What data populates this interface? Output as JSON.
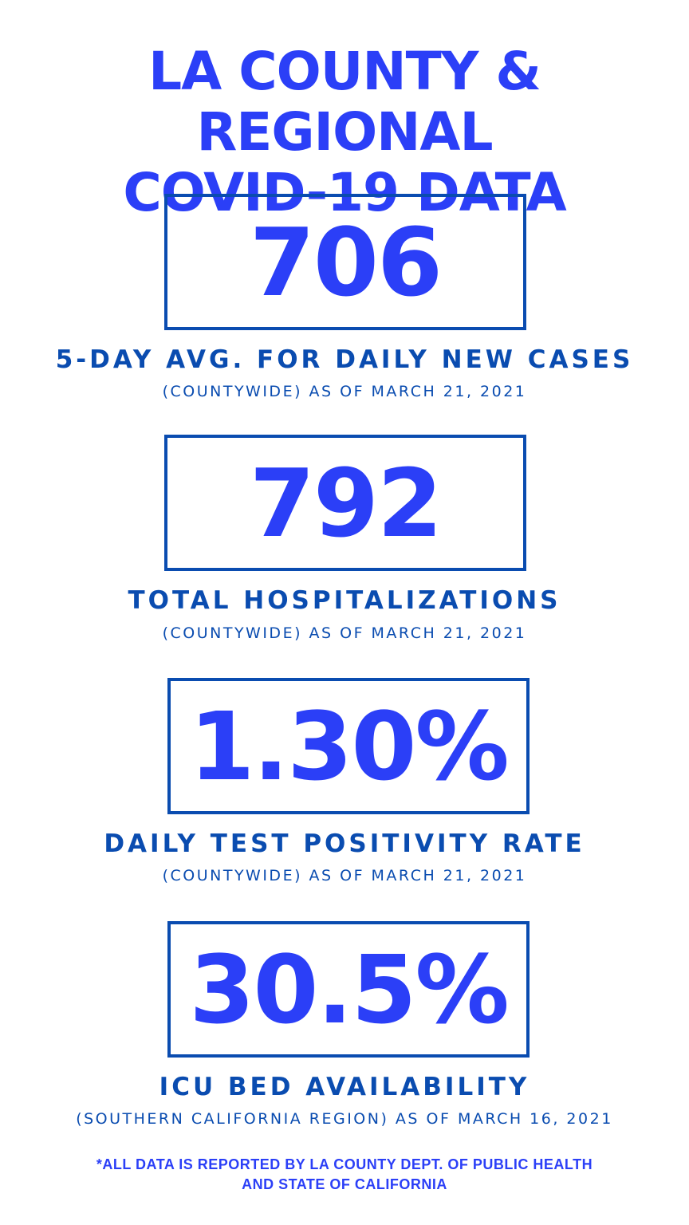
{
  "title": {
    "line1": "LA COUNTY & REGIONAL",
    "line2": "COVID-19 DATA"
  },
  "colors": {
    "accent": "#2b3ff7",
    "secondary": "#0a4cb0"
  },
  "stats": [
    {
      "value": "706",
      "label": "5-DAY AVG. FOR DAILY NEW CASES",
      "sub": "(COUNTYWIDE) AS OF MARCH 21, 2021"
    },
    {
      "value": "792",
      "label": "TOTAL HOSPITALIZATIONS",
      "sub": "(COUNTYWIDE) AS OF MARCH 21, 2021"
    },
    {
      "value": "1.30%",
      "label": "DAILY TEST POSITIVITY RATE",
      "sub": "(COUNTYWIDE) AS OF MARCH 21, 2021"
    },
    {
      "value": "30.5%",
      "label": "ICU BED AVAILABILITY",
      "sub": "(SOUTHERN CALIFORNIA REGION) AS OF MARCH 16, 2021"
    }
  ],
  "footnote": {
    "line1": "*ALL DATA IS REPORTED BY LA COUNTY DEPT. OF PUBLIC HEALTH",
    "line2": "AND STATE OF CALIFORNIA"
  }
}
